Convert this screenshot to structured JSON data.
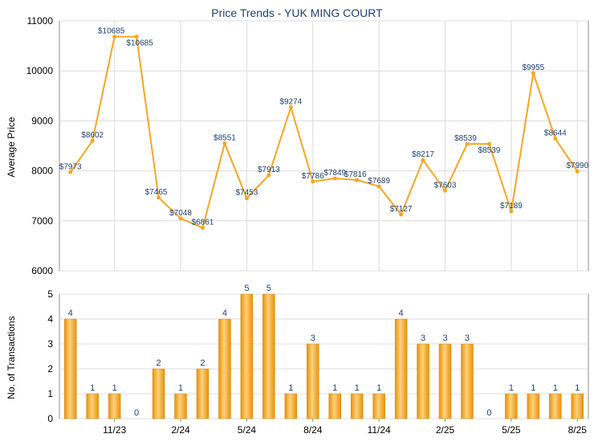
{
  "chart_data": [
    {
      "type": "line",
      "title": "Price Trends - YUK MING COURT",
      "ylabel": "Average Price",
      "ylim": [
        6000,
        11000
      ],
      "yticks": [
        6000,
        7000,
        8000,
        9000,
        10000,
        11000
      ],
      "grid": true,
      "color": "#f5a623",
      "series": [
        {
          "values": [
            7973,
            8602,
            10685,
            10685,
            7465,
            7048,
            6861,
            8551,
            7453,
            7913,
            9274,
            7786,
            7849,
            7816,
            7689,
            7127,
            8217,
            7603,
            8539,
            8539,
            7189,
            9955,
            8644,
            7990
          ],
          "labels": [
            "$7973",
            "$8602",
            "$10685",
            "$10685",
            "$7465",
            "$7048",
            "$6861",
            "$8551",
            "$7453",
            "$7913",
            "$9274",
            "$7786",
            "$7849",
            "$7816",
            "$7689",
            "$7127",
            "$8217",
            "$7603",
            "$8539",
            "$8539",
            "$7189",
            "$9955",
            "$8644",
            "$7990"
          ]
        }
      ]
    },
    {
      "type": "bar",
      "ylabel": "No. of Transactions",
      "ylim": [
        0,
        5
      ],
      "yticks": [
        0,
        1,
        2,
        3,
        4,
        5
      ],
      "grid": true,
      "color": "#f5a623",
      "categories": [
        "",
        "",
        "11/23",
        "",
        "",
        "2/24",
        "",
        "",
        "5/24",
        "",
        "",
        "8/24",
        "",
        "",
        "11/24",
        "",
        "",
        "2/25",
        "",
        "",
        "5/25",
        "",
        "",
        "8/25"
      ],
      "values": [
        4,
        1,
        1,
        0,
        2,
        1,
        2,
        4,
        5,
        5,
        1,
        3,
        1,
        1,
        1,
        4,
        3,
        3,
        3,
        0,
        1,
        1,
        1,
        1
      ]
    }
  ]
}
